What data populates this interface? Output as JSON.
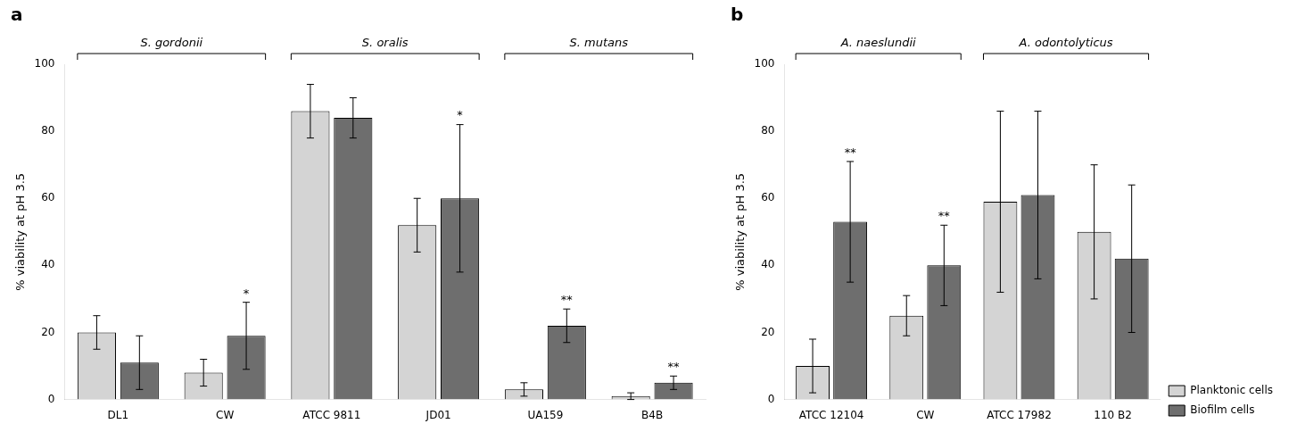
{
  "chart_data": [
    {
      "type": "bar",
      "title": "a",
      "categories": [
        "DL1",
        "CW",
        "ATCC 9811",
        "JD01",
        "UA159",
        "B4B"
      ],
      "category_groups": [
        "S. gordonii",
        "S. gordonii",
        "S. oralis",
        "S. oralis",
        "S. mutans",
        "S. mutans"
      ],
      "series": [
        {
          "name": "Planktonic cells",
          "color": "#d4d4d4",
          "values": [
            20,
            8,
            86,
            52,
            3,
            1
          ],
          "errors": [
            5,
            4,
            8,
            8,
            2,
            1
          ]
        },
        {
          "name": "Biofilm cells",
          "color": "#6e6e6e",
          "values": [
            11,
            19,
            84,
            60,
            22,
            5
          ],
          "errors": [
            8,
            10,
            6,
            22,
            5,
            2
          ],
          "annotations": [
            null,
            "*",
            null,
            "*",
            "**",
            "**"
          ]
        }
      ],
      "ylabel": "% viability at pH 3.5",
      "ylim": [
        0,
        100
      ],
      "yticks": [
        0,
        20,
        40,
        60,
        80,
        100
      ],
      "grid": false
    },
    {
      "type": "bar",
      "title": "b",
      "categories": [
        "ATCC 12104",
        "CW",
        "ATCC 17982",
        "110 B2"
      ],
      "category_groups": [
        "A. naeslundii",
        "A. naeslundii",
        "A. odontolyticus",
        "A. odontolyticus"
      ],
      "series": [
        {
          "name": "Planktonic cells",
          "color": "#d4d4d4",
          "values": [
            10,
            25,
            59,
            50
          ],
          "errors": [
            8,
            6,
            27,
            20
          ]
        },
        {
          "name": "Biofilm cells",
          "color": "#6e6e6e",
          "values": [
            53,
            40,
            61,
            42
          ],
          "errors": [
            18,
            12,
            25,
            22
          ],
          "annotations": [
            "**",
            "**",
            null,
            null
          ]
        }
      ],
      "ylabel": "% viability at pH 3.5",
      "ylim": [
        0,
        100
      ],
      "yticks": [
        0,
        20,
        40,
        60,
        80,
        100
      ],
      "grid": false,
      "legend": "lower right"
    }
  ]
}
